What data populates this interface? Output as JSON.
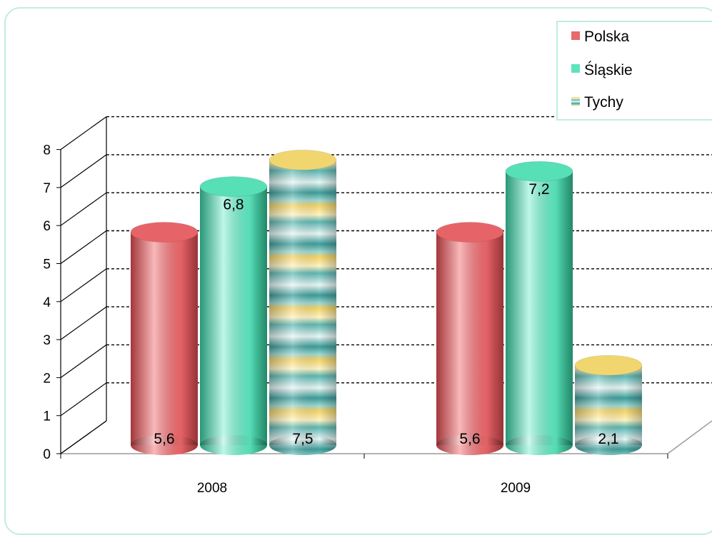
{
  "chart_data": {
    "type": "bar",
    "style": "3d-cylinder",
    "categories": [
      "2008",
      "2009"
    ],
    "series": [
      {
        "name": "Polska",
        "values": [
          5.6,
          5.6
        ],
        "labels": [
          "5,6",
          "5,6"
        ],
        "color": "#e8686c"
      },
      {
        "name": "Śląskie",
        "values": [
          6.8,
          7.2
        ],
        "labels": [
          "6,8",
          "7,2"
        ],
        "color": "#5ee3bd"
      },
      {
        "name": "Tychy",
        "values": [
          7.5,
          2.1
        ],
        "labels": [
          "7,5",
          "2,1"
        ],
        "color": "#4aa7a7"
      }
    ],
    "ylim": [
      0,
      8
    ],
    "yticks": [
      "0",
      "1",
      "2",
      "3",
      "4",
      "5",
      "6",
      "7",
      "8"
    ],
    "grid": true,
    "legend_position": "top-right"
  }
}
